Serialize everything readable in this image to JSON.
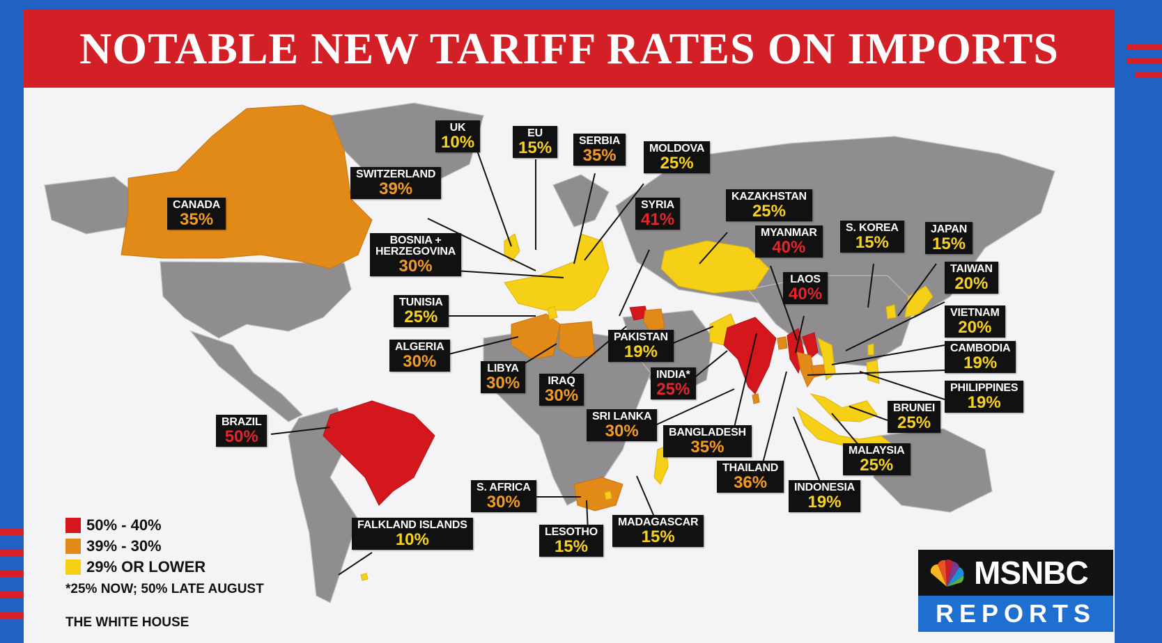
{
  "title": "NOTABLE NEW TARIFF RATES ON IMPORTS",
  "colors": {
    "high": "#d3171c",
    "mid": "#e28a18",
    "low": "#f6cf17",
    "base_land": "#8f8d8f",
    "banner": "#d31f26"
  },
  "legend": {
    "high": "50% - 40%",
    "mid": "39% - 30%",
    "low": "29% OR LOWER"
  },
  "note": "*25% NOW; 50% LATE AUGUST",
  "source": "THE WHITE HOUSE",
  "logo": {
    "icon": "peacock-icon",
    "name": "MSNBC",
    "show": "REPORTS"
  },
  "countries": {
    "uk": {
      "name": "UK",
      "rate": "10%",
      "tier": "low"
    },
    "eu": {
      "name": "EU",
      "rate": "15%",
      "tier": "low"
    },
    "serbia": {
      "name": "SERBIA",
      "rate": "35%",
      "tier": "mid"
    },
    "moldova": {
      "name": "MOLDOVA",
      "rate": "25%",
      "tier": "low"
    },
    "switzerland": {
      "name": "SWITZERLAND",
      "rate": "39%",
      "tier": "mid"
    },
    "canada": {
      "name": "CANADA",
      "rate": "35%",
      "tier": "mid"
    },
    "kazakhstan": {
      "name": "KAZAKHSTAN",
      "rate": "25%",
      "tier": "low"
    },
    "syria": {
      "name": "SYRIA",
      "rate": "41%",
      "tier": "high"
    },
    "bosnia": {
      "name1": "BOSNIA +",
      "name2": "HERZEGOVINA",
      "rate": "30%",
      "tier": "mid"
    },
    "myanmar": {
      "name": "MYANMAR",
      "rate": "40%",
      "tier": "high"
    },
    "s_korea": {
      "name": "S. KOREA",
      "rate": "15%",
      "tier": "low"
    },
    "japan": {
      "name": "JAPAN",
      "rate": "15%",
      "tier": "low"
    },
    "laos": {
      "name": "LAOS",
      "rate": "40%",
      "tier": "high"
    },
    "taiwan": {
      "name": "TAIWAN",
      "rate": "20%",
      "tier": "low"
    },
    "tunisia": {
      "name": "TUNISIA",
      "rate": "25%",
      "tier": "low"
    },
    "vietnam": {
      "name": "VIETNAM",
      "rate": "20%",
      "tier": "low"
    },
    "algeria": {
      "name": "ALGERIA",
      "rate": "30%",
      "tier": "mid"
    },
    "pakistan": {
      "name": "PAKISTAN",
      "rate": "19%",
      "tier": "low"
    },
    "cambodia": {
      "name": "CAMBODIA",
      "rate": "19%",
      "tier": "low"
    },
    "libya": {
      "name": "LIBYA",
      "rate": "30%",
      "tier": "mid"
    },
    "india": {
      "name": "INDIA*",
      "rate": "25%",
      "tier": "high"
    },
    "iraq": {
      "name": "IRAQ",
      "rate": "30%",
      "tier": "mid"
    },
    "philippines": {
      "name": "PHILIPPINES",
      "rate": "19%",
      "tier": "low"
    },
    "brazil": {
      "name": "BRAZIL",
      "rate": "50%",
      "tier": "high"
    },
    "sri_lanka": {
      "name": "SRI LANKA",
      "rate": "30%",
      "tier": "mid"
    },
    "brunei": {
      "name": "BRUNEI",
      "rate": "25%",
      "tier": "low"
    },
    "bangladesh": {
      "name": "BANGLADESH",
      "rate": "35%",
      "tier": "mid"
    },
    "malaysia": {
      "name": "MALAYSIA",
      "rate": "25%",
      "tier": "low"
    },
    "thailand": {
      "name": "THAILAND",
      "rate": "36%",
      "tier": "mid"
    },
    "s_africa": {
      "name": "S. AFRICA",
      "rate": "30%",
      "tier": "mid"
    },
    "indonesia": {
      "name": "INDONESIA",
      "rate": "19%",
      "tier": "low"
    },
    "falkland": {
      "name": "FALKLAND ISLANDS",
      "rate": "10%",
      "tier": "low"
    },
    "lesotho": {
      "name": "LESOTHO",
      "rate": "15%",
      "tier": "low"
    },
    "madagascar": {
      "name": "MADAGASCAR",
      "rate": "15%",
      "tier": "low"
    }
  }
}
